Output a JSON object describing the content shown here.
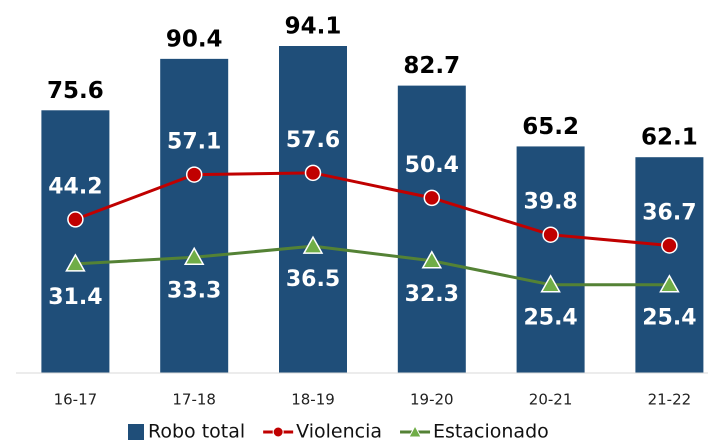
{
  "chart_data": {
    "type": "bar-line",
    "categories": [
      "16-17",
      "17-18",
      "18-19",
      "19-20",
      "20-21",
      "21-22"
    ],
    "ylim": [
      0,
      100
    ],
    "series": [
      {
        "name": "Robo total",
        "type": "bar",
        "color": "#1f4e79",
        "values": [
          75.6,
          90.4,
          94.1,
          82.7,
          65.2,
          62.1
        ]
      },
      {
        "name": "Violencia",
        "type": "line",
        "marker": "circle",
        "color": "#c00000",
        "values": [
          44.2,
          57.1,
          57.6,
          50.4,
          39.8,
          36.7
        ]
      },
      {
        "name": "Estacionado",
        "type": "line",
        "marker": "triangle",
        "color": "#548235",
        "values": [
          31.4,
          33.3,
          36.5,
          32.3,
          25.4,
          25.4
        ]
      }
    ]
  }
}
